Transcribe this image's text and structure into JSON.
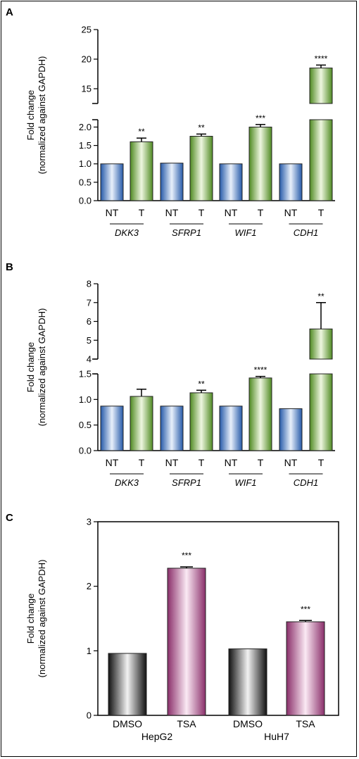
{
  "chart_data": [
    {
      "panel": "A",
      "type": "bar",
      "ylabel": "Fold change",
      "ylabel2": "(normalized against GAPDH)",
      "categories": [
        "NT",
        "T",
        "NT",
        "T",
        "NT",
        "T",
        "NT",
        "T"
      ],
      "groups": [
        "DKK3",
        "SFRP1",
        "WIF1",
        "CDH1"
      ],
      "values": [
        1.0,
        1.6,
        1.02,
        1.75,
        1.0,
        2.0,
        1.0,
        18.5
      ],
      "errors": [
        0,
        0.1,
        0,
        0.06,
        0,
        0.07,
        0,
        0.5
      ],
      "significance": [
        "",
        "**",
        "",
        "**",
        "",
        "***",
        "",
        "****"
      ],
      "lower_yticks": [
        "0.0",
        "0.5",
        "1.0",
        "1.5",
        "2.0"
      ],
      "upper_yticks": [
        "15",
        "20",
        "25"
      ],
      "ylim_lower": [
        0,
        2.2
      ],
      "ylim_upper": [
        12.5,
        25
      ],
      "broken_axis": true
    },
    {
      "panel": "B",
      "type": "bar",
      "ylabel": "Fold change",
      "ylabel2": "(normalized against GAPDH)",
      "categories": [
        "NT",
        "T",
        "NT",
        "T",
        "NT",
        "T",
        "NT",
        "T"
      ],
      "groups": [
        "DKK3",
        "SFRP1",
        "WIF1",
        "CDH1"
      ],
      "values": [
        0.87,
        1.06,
        0.87,
        1.13,
        0.87,
        1.42,
        0.82,
        5.6
      ],
      "errors": [
        0,
        0.14,
        0,
        0.05,
        0,
        0.03,
        0,
        1.4
      ],
      "significance": [
        "",
        "",
        "",
        "**",
        "",
        "****",
        "",
        "**"
      ],
      "lower_yticks": [
        "0.0",
        "0.5",
        "1.0",
        "1.5"
      ],
      "upper_yticks": [
        "4",
        "5",
        "6",
        "7",
        "8"
      ],
      "ylim_lower": [
        0,
        1.5
      ],
      "ylim_upper": [
        4,
        8
      ],
      "broken_axis": true
    },
    {
      "panel": "C",
      "type": "bar",
      "ylabel": "Fold change",
      "ylabel2": "(normalized against GAPDH)",
      "categories": [
        "DMSO",
        "TSA",
        "DMSO",
        "TSA"
      ],
      "groups": [
        "HepG2",
        "HuH7"
      ],
      "values": [
        0.96,
        2.28,
        1.03,
        1.45
      ],
      "errors": [
        0,
        0.02,
        0,
        0.02
      ],
      "significance": [
        "",
        "***",
        "",
        "***"
      ],
      "yticks": [
        "0",
        "1",
        "2",
        "3"
      ],
      "ylim": [
        0,
        3
      ]
    }
  ],
  "colors": {
    "nt": "#2f6fc4",
    "t": "#6aa334",
    "dmso": "#262626",
    "tsa": "#a2417f"
  }
}
